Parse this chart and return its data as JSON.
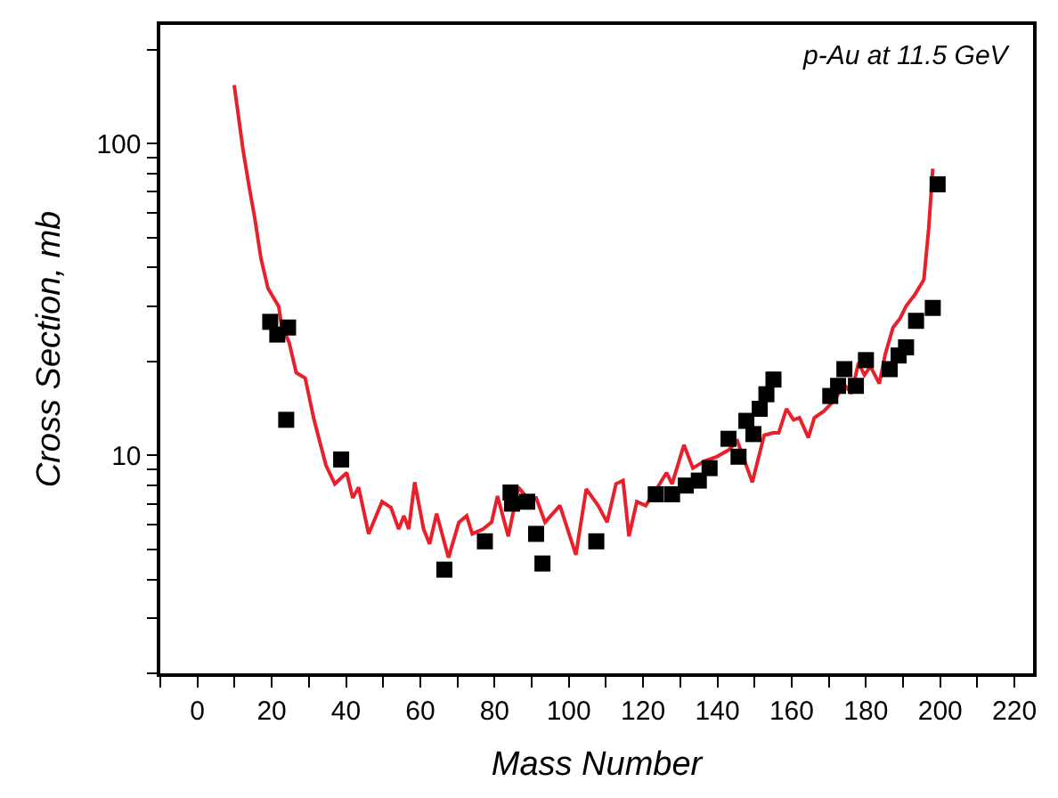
{
  "chart_data": {
    "type": "scatter",
    "xlabel": "Mass Number",
    "ylabel": "Cross Section, mb",
    "annotations": [
      "p-Au at 11.5 GeV"
    ],
    "log": "y",
    "xlim": [
      -10,
      225
    ],
    "ylim": [
      2,
      240
    ],
    "xticks": [
      {
        "value": -10,
        "label": null
      },
      0,
      {
        "value": 10,
        "label": null
      },
      20,
      {
        "value": 30,
        "label": null
      },
      40,
      {
        "value": 50,
        "label": null
      },
      60,
      {
        "value": 70,
        "label": null
      },
      80,
      {
        "value": 90,
        "label": null
      },
      100,
      {
        "value": 110,
        "label": null
      },
      120,
      {
        "value": 130,
        "label": null
      },
      140,
      {
        "value": 150,
        "label": null
      },
      160,
      {
        "value": 170,
        "label": null
      },
      180,
      {
        "value": 190,
        "label": null
      },
      200,
      {
        "value": 210,
        "label": null
      },
      220
    ],
    "yticks": [
      {
        "value": 2,
        "label": null
      },
      {
        "value": 3,
        "label": null
      },
      {
        "value": 4,
        "label": null
      },
      {
        "value": 5,
        "label": null
      },
      {
        "value": 6,
        "label": null
      },
      {
        "value": 7,
        "label": null
      },
      {
        "value": 8,
        "label": null
      },
      {
        "value": 9,
        "label": null
      },
      10,
      {
        "value": 20,
        "label": null
      },
      {
        "value": 30,
        "label": null
      },
      {
        "value": 40,
        "label": null
      },
      {
        "value": 50,
        "label": null
      },
      {
        "value": 60,
        "label": null
      },
      {
        "value": 70,
        "label": null
      },
      {
        "value": 80,
        "label": null
      },
      {
        "value": 90,
        "label": null
      },
      100,
      {
        "value": 200,
        "label": null
      }
    ],
    "series": [
      {
        "type": "line",
        "color": "#e8202a",
        "marker": "none",
        "line_style": "solid",
        "x": [
          9.9,
          12.3,
          13.9,
          15.4,
          17.1,
          19,
          21.9,
          22.6,
          24.7,
          26.6,
          29,
          31.4,
          34.6,
          37,
          40.2,
          41.8,
          43.4,
          46.1,
          49.7,
          52.1,
          54.2,
          55.6,
          56.9,
          58.5,
          60.9,
          62.5,
          64.4,
          67.6,
          70.4,
          72.5,
          74,
          76.9,
          79.2,
          80.8,
          83.7,
          86.4,
          88.8,
          91.2,
          93.6,
          97.6,
          101.9,
          104.7,
          107.9,
          110.3,
          112.7,
          114.6,
          116.2,
          118.3,
          120.7,
          123.9,
          126.3,
          127.8,
          131,
          133.4,
          136.6,
          139.8,
          143,
          145.4,
          149.4,
          152.6,
          155,
          156.5,
          158.6,
          160.5,
          162.1,
          164.5,
          166.1,
          168.5,
          171.7,
          174.1,
          176.1,
          178,
          179.6,
          181.2,
          183.6,
          185.2,
          187.3,
          189.2,
          190.8,
          193.2,
          195.6,
          196.9,
          198
        ],
        "values": [
          154,
          95,
          73,
          58,
          42.8,
          34.3,
          30,
          26.3,
          23,
          18.4,
          17.7,
          13,
          9.3,
          8.1,
          8.8,
          7.3,
          7.9,
          5.6,
          7.1,
          6.8,
          5.8,
          6.4,
          5.8,
          8.2,
          5.8,
          5.2,
          6.5,
          4.7,
          6.1,
          6.4,
          5.6,
          5.8,
          6.1,
          7.4,
          5.5,
          7.9,
          7.3,
          7.3,
          6.1,
          6.9,
          4.8,
          7.8,
          6.9,
          6.1,
          8.1,
          8.3,
          5.5,
          7.1,
          6.9,
          7.9,
          8.8,
          8.1,
          10.8,
          9.1,
          9.6,
          9.9,
          10.4,
          11.1,
          8.2,
          11.6,
          11.8,
          11.8,
          14.1,
          13,
          13.2,
          11.4,
          13.2,
          13.8,
          15.1,
          16.9,
          15.8,
          19.8,
          18.1,
          19.3,
          17,
          21.1,
          25.7,
          27.5,
          30.1,
          32.8,
          36.6,
          53.5,
          83
        ]
      },
      {
        "color": "#000000",
        "marker": "square",
        "x": [
          19.6,
          21.5,
          24.4,
          23.9,
          38.7,
          66.5,
          77.4,
          84.3,
          84.7,
          88.8,
          91.2,
          92.9,
          107.4,
          123.4,
          127.8,
          131.5,
          135,
          137.9,
          143,
          145.7,
          147.8,
          149.7,
          151.4,
          153.2,
          155.1,
          170.4,
          172.5,
          174.2,
          177.3,
          180,
          186.4,
          188.8,
          190.8,
          193.5,
          198,
          199.3
        ],
        "values": [
          26.8,
          24.4,
          25.7,
          13,
          9.7,
          4.3,
          5.3,
          7.6,
          7,
          7.1,
          5.6,
          4.5,
          5.3,
          7.5,
          7.5,
          8,
          8.3,
          9.1,
          11.3,
          9.9,
          12.9,
          11.7,
          14.1,
          15.7,
          17.5,
          15.5,
          16.7,
          18.9,
          16.7,
          20.2,
          18.9,
          20.9,
          22.2,
          27,
          29.7,
          74
        ]
      }
    ]
  }
}
